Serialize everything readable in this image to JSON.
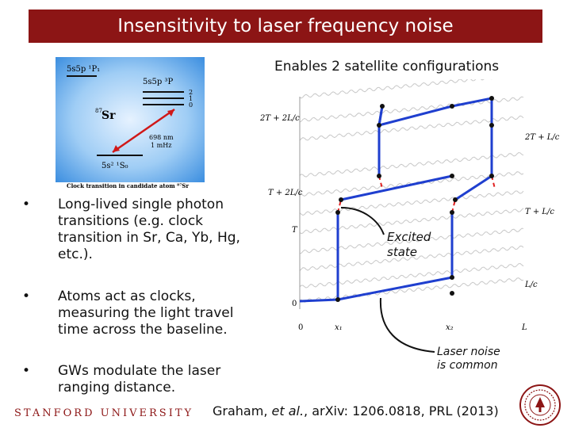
{
  "slide": {
    "title": "Insensitivity to laser frequency noise",
    "subtitle": "Enables 2 satellite configurations",
    "colors": {
      "title_bar": "#8c1515",
      "blue_path": "#1f3fcf",
      "red_path": "#e02020"
    }
  },
  "level_diagram": {
    "state_top_left": "5s5p ¹P₁",
    "state_upper": "5s5p ³P",
    "j_levels": [
      "2",
      "1",
      "0"
    ],
    "atom_mass": "87",
    "atom_symbol": "Sr",
    "wavelength": "698 nm",
    "linewidth": "1 mHz",
    "ground_state": "5s² ¹S₀",
    "caption": "Clock transition in candidate atom ⁸⁷Sr"
  },
  "bullets": [
    {
      "marker": "•",
      "text": "Long-lived single photon transitions (e.g. clock transition in Sr, Ca, Yb, Hg, etc.)."
    },
    {
      "marker": "•",
      "text": "Atoms act as clocks, measuring the light travel time across the baseline."
    },
    {
      "marker": "•",
      "text": "GWs modulate the laser ranging distance."
    }
  ],
  "spacetime_diagram": {
    "left_axis_labels": [
      "2T + 2L/c",
      "T + 2L/c",
      "T",
      "0"
    ],
    "right_axis_labels": [
      "2T + L/c",
      "T + L/c",
      "L/c"
    ],
    "x_labels": [
      "0",
      "x₁",
      "x₂",
      "L"
    ]
  },
  "annotations": {
    "excited_state": "Excited\nstate",
    "laser_noise": "Laser noise\nis common"
  },
  "citation": {
    "authors": "Graham, ",
    "etal": "et al.",
    "rest": ", arXiv: 1206.0818, PRL (2013)"
  },
  "footer": {
    "university": "STANFORD UNIVERSITY"
  }
}
